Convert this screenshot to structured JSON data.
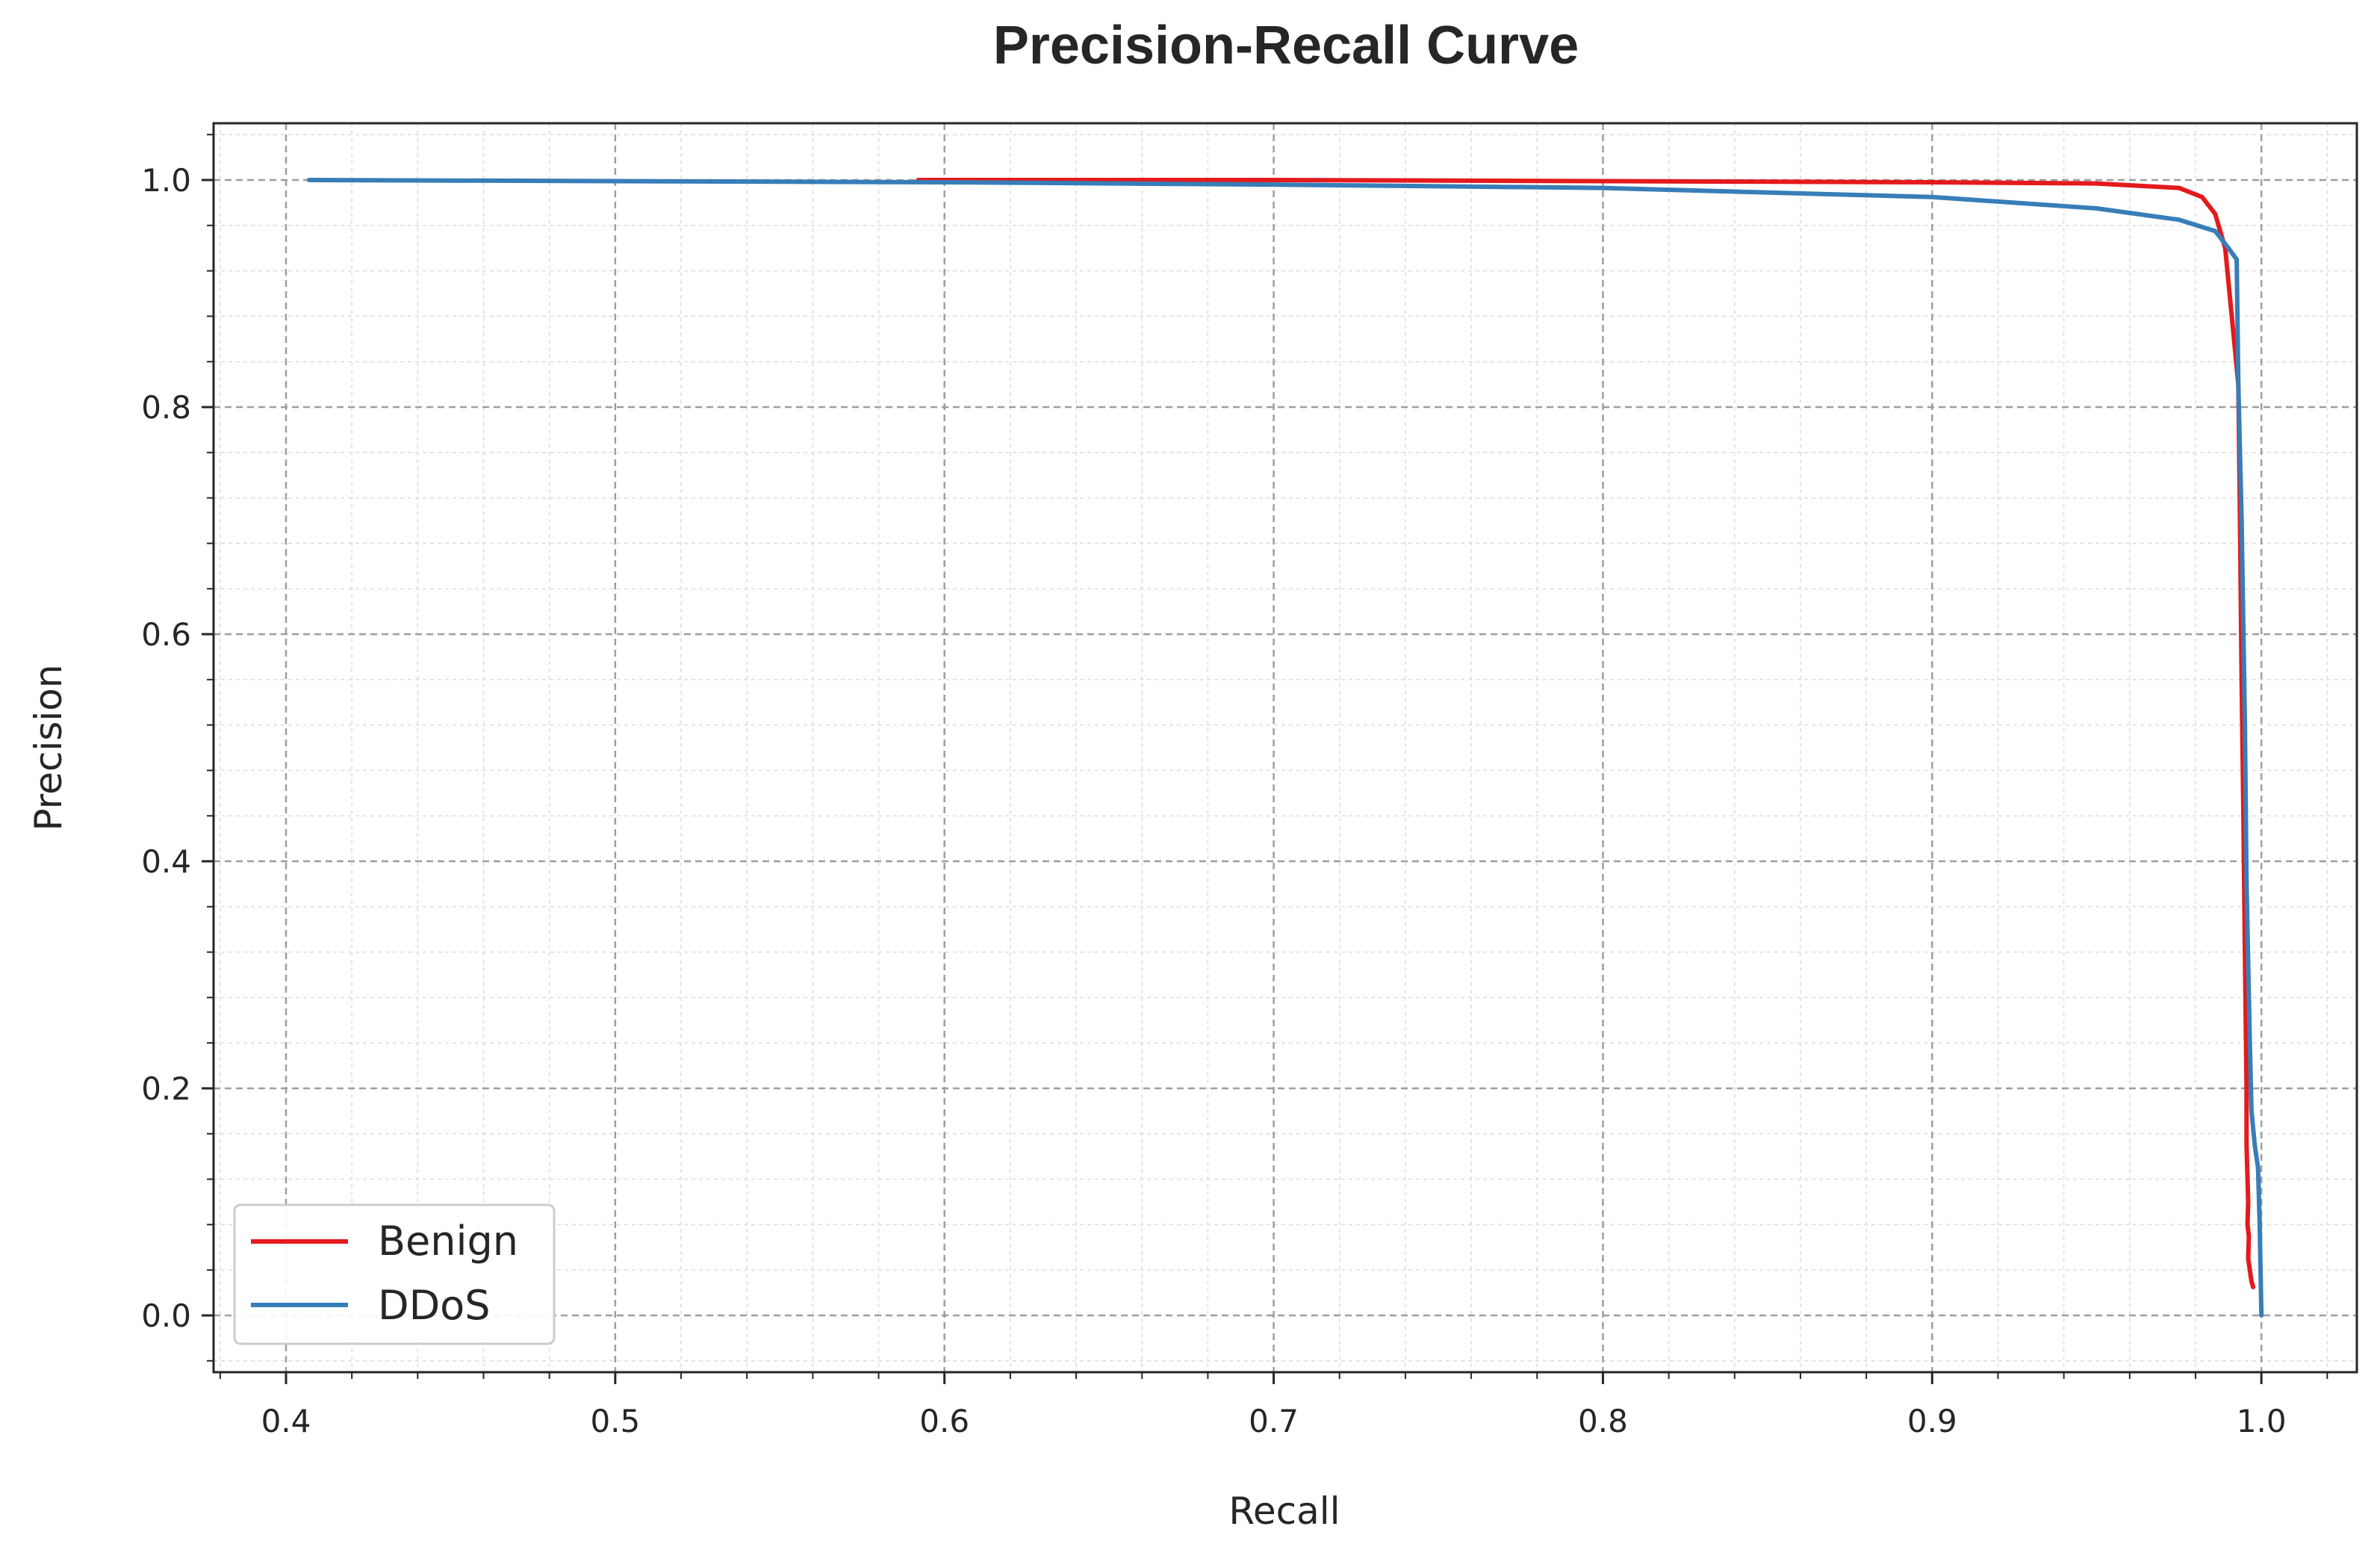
{
  "chart_data": {
    "type": "line",
    "title": "Precision-Recall Curve",
    "xlabel": "Recall",
    "ylabel": "Precision",
    "xlim": [
      0.378,
      1.029
    ],
    "ylim": [
      -0.05,
      1.05
    ],
    "x_ticks": [
      0.4,
      0.5,
      0.6,
      0.7,
      0.8,
      0.9,
      1.0
    ],
    "x_tick_labels": [
      "0.4",
      "0.5",
      "0.6",
      "0.7",
      "0.8",
      "0.9",
      "1.0"
    ],
    "y_ticks": [
      0.0,
      0.2,
      0.4,
      0.6,
      0.8,
      1.0
    ],
    "y_tick_labels": [
      "0.0",
      "0.2",
      "0.4",
      "0.6",
      "0.8",
      "1.0"
    ],
    "grid": true,
    "legend_position": "lower-left",
    "series": [
      {
        "name": "Benign",
        "color": "#e41a1c",
        "x": [
          0.592,
          0.7,
          0.8,
          0.9,
          0.95,
          0.975,
          0.982,
          0.986,
          0.989,
          0.991,
          0.993,
          0.9935,
          0.994,
          0.9945,
          0.995,
          0.9955,
          0.9955,
          0.996,
          0.9958,
          0.9962,
          0.996,
          0.9965,
          0.997,
          0.9975
        ],
        "y": [
          1.0,
          1.0,
          0.999,
          0.998,
          0.997,
          0.993,
          0.985,
          0.97,
          0.94,
          0.88,
          0.82,
          0.7,
          0.56,
          0.45,
          0.32,
          0.2,
          0.15,
          0.1,
          0.08,
          0.07,
          0.05,
          0.04,
          0.03,
          0.025
        ]
      },
      {
        "name": "DDoS",
        "color": "#377eb8",
        "x": [
          0.407,
          0.5,
          0.6,
          0.7,
          0.8,
          0.9,
          0.95,
          0.975,
          0.986,
          0.99,
          0.9925,
          0.993,
          0.994,
          0.995,
          0.9955,
          0.9965,
          0.997,
          0.998,
          0.999,
          0.9995,
          1.0
        ],
        "y": [
          1.0,
          0.999,
          0.998,
          0.996,
          0.993,
          0.985,
          0.975,
          0.965,
          0.955,
          0.94,
          0.93,
          0.82,
          0.7,
          0.52,
          0.38,
          0.24,
          0.18,
          0.15,
          0.13,
          0.08,
          0.0
        ]
      }
    ]
  }
}
